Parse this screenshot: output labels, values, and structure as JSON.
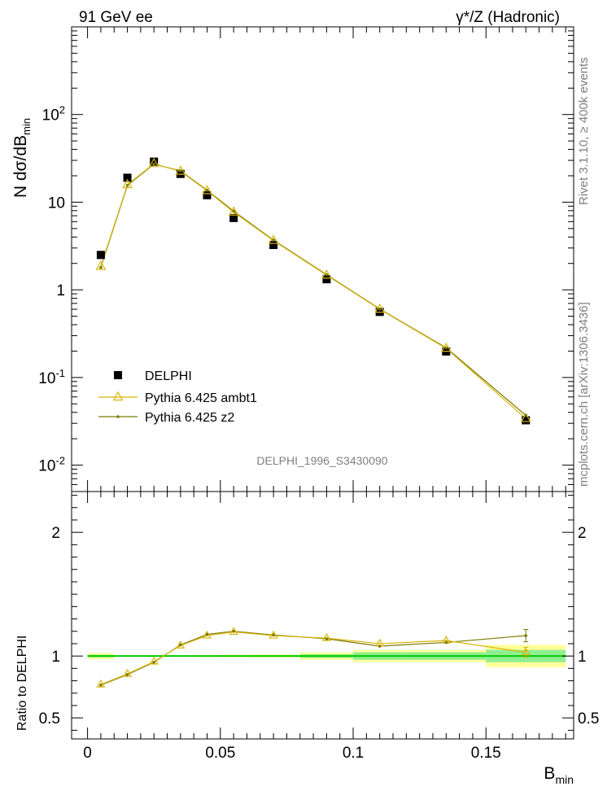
{
  "header": {
    "left": "91 GeV ee",
    "right": "γ*/Z (Hadronic)"
  },
  "side_labels": {
    "rivet": "Rivet 3.1.10, ≥ 400k events",
    "mcplots": "mcplots.cern.ch [arXiv:1306.3436]"
  },
  "watermark": "DELPHI_1996_S3430090",
  "chart_data": [
    {
      "type": "scatter",
      "panel": "main",
      "ylabel": "N dσ/dB_min",
      "yscale": "log",
      "xlim": [
        -0.006,
        0.183
      ],
      "ylim": [
        0.005,
        1000
      ],
      "y_tick_labels": [
        "10^-2",
        "10^-1",
        "1",
        "10",
        "10^2"
      ],
      "legend_placement": "lower-left",
      "series": [
        {
          "name": "DELPHI",
          "marker": "filled-square",
          "color": "#000000",
          "x": [
            0.005,
            0.015,
            0.025,
            0.035,
            0.045,
            0.055,
            0.07,
            0.09,
            0.11,
            0.135,
            0.165
          ],
          "y": [
            2.5,
            19.0,
            29.0,
            21.0,
            12.0,
            6.6,
            3.25,
            1.32,
            0.56,
            0.198,
            0.0325
          ]
        },
        {
          "name": "Pythia 6.425 ambt1",
          "marker": "open-triangle",
          "color": "#d9b40b",
          "x": [
            0.005,
            0.015,
            0.025,
            0.035,
            0.045,
            0.055,
            0.07,
            0.09,
            0.11,
            0.135,
            0.165
          ],
          "y": [
            1.85,
            15.8,
            27.5,
            22.5,
            13.5,
            7.7,
            3.65,
            1.47,
            0.6,
            0.215,
            0.034
          ]
        },
        {
          "name": "Pythia 6.425 z2",
          "marker": "dot",
          "color": "#7a7a00",
          "x": [
            0.005,
            0.015,
            0.025,
            0.035,
            0.045,
            0.055,
            0.07,
            0.09,
            0.11,
            0.135,
            0.165
          ],
          "y": [
            1.8,
            15.5,
            27.2,
            22.8,
            13.7,
            7.9,
            3.7,
            1.49,
            0.605,
            0.218,
            0.037
          ]
        }
      ]
    },
    {
      "type": "line",
      "panel": "ratio",
      "ylabel": "Ratio to DELPHI",
      "xlabel": "B_min",
      "xlim": [
        -0.006,
        0.183
      ],
      "ylim": [
        0.33,
        2.33
      ],
      "x_tick_labels": [
        "0",
        "0.05",
        "0.1",
        "0.15"
      ],
      "y_tick_labels": [
        "0.5",
        "1",
        "2"
      ],
      "uncertainty_bins": {
        "edges": [
          0.0,
          0.01,
          0.02,
          0.03,
          0.04,
          0.05,
          0.06,
          0.08,
          0.1,
          0.12,
          0.15,
          0.18
        ],
        "stat_half_width": [
          0.01,
          0.004,
          0.003,
          0.003,
          0.004,
          0.005,
          0.006,
          0.015,
          0.03,
          0.03,
          0.05
        ],
        "total_half_width": [
          0.025,
          0.006,
          0.006,
          0.006,
          0.008,
          0.01,
          0.012,
          0.03,
          0.05,
          0.05,
          0.09
        ]
      },
      "series": [
        {
          "name": "Pythia 6.425 ambt1",
          "marker": "open-triangle",
          "color": "#d9b40b",
          "x": [
            0.005,
            0.015,
            0.025,
            0.035,
            0.045,
            0.055,
            0.07,
            0.09,
            0.11,
            0.135,
            0.165
          ],
          "y": [
            0.77,
            0.855,
            0.955,
            1.085,
            1.165,
            1.195,
            1.165,
            1.145,
            1.1,
            1.125,
            1.03
          ],
          "err": [
            0,
            0,
            0,
            0,
            0,
            0,
            0,
            0,
            0,
            0,
            0.04
          ]
        },
        {
          "name": "Pythia 6.425 z2",
          "marker": "dot",
          "color": "#7a7a00",
          "x": [
            0.005,
            0.015,
            0.025,
            0.035,
            0.045,
            0.055,
            0.07,
            0.09,
            0.11,
            0.135,
            0.165
          ],
          "y": [
            0.765,
            0.85,
            0.95,
            1.09,
            1.175,
            1.2,
            1.17,
            1.14,
            1.08,
            1.11,
            1.165
          ],
          "err": [
            0,
            0,
            0,
            0,
            0,
            0,
            0,
            0,
            0,
            0,
            0.05
          ]
        }
      ]
    }
  ],
  "colors": {
    "stat_band": "#90ee90",
    "total_band": "#ffff99",
    "reference_line": "#00cc00"
  }
}
